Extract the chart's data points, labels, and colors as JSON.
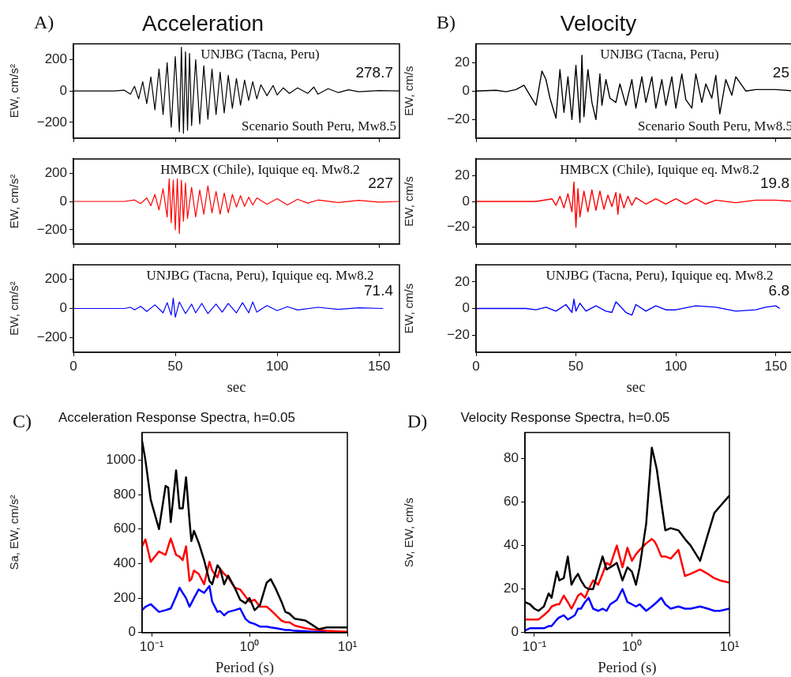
{
  "chart_data": [
    {
      "type": "line",
      "title": "Acceleration",
      "ylabel": "EW, cm/s²",
      "annotations": [
        "A)",
        "UNJBG (Tacna, Peru)",
        "278.7",
        "Scenario South Peru, Mw8.5"
      ],
      "xlim": [
        0,
        160
      ],
      "xticks": [
        0,
        50,
        100,
        150
      ],
      "ylim": [
        -300,
        300
      ],
      "yticks": [
        -200,
        0,
        200
      ],
      "tick_labels": "y",
      "series": [
        {
          "color": "#000000",
          "x": [
            0,
            20,
            25,
            28,
            30,
            32,
            34,
            36,
            38,
            40,
            42,
            44,
            46,
            48,
            50,
            52,
            53,
            54,
            55,
            56,
            57,
            58,
            60,
            62,
            64,
            66,
            68,
            70,
            72,
            74,
            76,
            78,
            80,
            82,
            84,
            86,
            88,
            90,
            92,
            95,
            98,
            100,
            103,
            106,
            110,
            115,
            118,
            120,
            125,
            130,
            135,
            140,
            150,
            160
          ],
          "values": [
            0,
            0,
            5,
            -20,
            30,
            -50,
            60,
            -80,
            90,
            -120,
            140,
            -150,
            180,
            -230,
            220,
            -260,
            279,
            -270,
            250,
            -250,
            240,
            -220,
            200,
            -210,
            160,
            -180,
            140,
            -150,
            120,
            -140,
            100,
            -110,
            80,
            -90,
            70,
            -60,
            60,
            -50,
            40,
            -30,
            35,
            -25,
            20,
            -15,
            20,
            -15,
            25,
            -20,
            15,
            -10,
            8,
            -5,
            3,
            0
          ]
        }
      ]
    },
    {
      "type": "line",
      "ylabel": "EW, cm/s²",
      "annotations": [
        "HMBCX (Chile), Iquique eq. Mw8.2",
        "227"
      ],
      "xlim": [
        0,
        160
      ],
      "xticks": [
        0,
        50,
        100,
        150
      ],
      "ylim": [
        -300,
        300
      ],
      "yticks": [
        -200,
        0,
        200
      ],
      "tick_labels": "y",
      "series": [
        {
          "color": "#ff0000",
          "x": [
            0,
            25,
            30,
            33,
            36,
            38,
            40,
            42,
            44,
            46,
            47,
            48,
            49,
            50,
            51,
            52,
            53,
            54,
            55,
            56,
            58,
            60,
            62,
            64,
            66,
            68,
            70,
            72,
            74,
            76,
            78,
            80,
            82,
            84,
            86,
            88,
            90,
            95,
            100,
            105,
            110,
            115,
            120,
            130,
            140,
            150,
            160
          ],
          "values": [
            0,
            0,
            10,
            -15,
            25,
            -30,
            50,
            -60,
            90,
            -110,
            160,
            -150,
            150,
            -200,
            160,
            -227,
            150,
            -140,
            130,
            -120,
            100,
            -110,
            80,
            -90,
            110,
            -80,
            70,
            -90,
            60,
            -80,
            50,
            -40,
            40,
            -35,
            30,
            -25,
            25,
            -20,
            20,
            -25,
            15,
            -12,
            10,
            -8,
            8,
            -5,
            0
          ]
        }
      ]
    },
    {
      "type": "line",
      "xlabel": "sec",
      "ylabel": "EW, cm/s²",
      "annotations": [
        "UNJBG (Tacna, Peru), Iquique eq. Mw8.2",
        "71.4"
      ],
      "xlim": [
        0,
        160
      ],
      "xticks": [
        0,
        50,
        100,
        150
      ],
      "ylim": [
        -300,
        300
      ],
      "yticks": [
        -200,
        0,
        200
      ],
      "series": [
        {
          "color": "#0000ff",
          "x": [
            0,
            25,
            28,
            30,
            33,
            36,
            40,
            44,
            46,
            48,
            49,
            50,
            52,
            55,
            58,
            60,
            63,
            66,
            70,
            73,
            76,
            80,
            83,
            86,
            88,
            90,
            95,
            100,
            105,
            110,
            120,
            130,
            140,
            152
          ],
          "values": [
            0,
            0,
            8,
            -10,
            15,
            -20,
            25,
            -30,
            40,
            -45,
            71,
            -60,
            45,
            -35,
            30,
            -30,
            35,
            -35,
            30,
            -25,
            35,
            -30,
            40,
            -30,
            45,
            -25,
            20,
            -15,
            12,
            -10,
            8,
            -6,
            5,
            0
          ]
        }
      ]
    },
    {
      "type": "line",
      "title": "Velocity",
      "ylabel": "EW, cm/s",
      "annotations": [
        "B)",
        "UNJBG (Tacna, Peru)",
        "25",
        "Scenario South Peru, Mw8.5"
      ],
      "xlim": [
        0,
        160
      ],
      "xticks": [
        0,
        50,
        100,
        150
      ],
      "ylim": [
        -33,
        33
      ],
      "yticks": [
        -20,
        0,
        20
      ],
      "tick_labels": "y",
      "series": [
        {
          "color": "#000000",
          "x": [
            0,
            10,
            15,
            20,
            24,
            27,
            30,
            33,
            35,
            37,
            40,
            42,
            44,
            46,
            48,
            50,
            52,
            53,
            54,
            56,
            58,
            60,
            62,
            63,
            65,
            67,
            70,
            72,
            75,
            78,
            80,
            83,
            85,
            88,
            90,
            93,
            95,
            98,
            100,
            103,
            105,
            108,
            110,
            113,
            115,
            118,
            120,
            122,
            125,
            128,
            130,
            135,
            140,
            150,
            160
          ],
          "values": [
            0,
            0.5,
            -0.5,
            1,
            4,
            -3,
            -10,
            14,
            8,
            -5,
            -19,
            15,
            -15,
            10,
            -20,
            18,
            -22,
            25,
            -18,
            15,
            -8,
            -20,
            12,
            -10,
            8,
            -5,
            -8,
            5,
            -10,
            8,
            -12,
            10,
            -8,
            10,
            -12,
            8,
            -10,
            10,
            -12,
            12,
            -6,
            -12,
            12,
            -8,
            5,
            -5,
            11,
            -16,
            8,
            -3,
            10,
            0,
            1,
            1,
            0
          ]
        }
      ]
    },
    {
      "type": "line",
      "ylabel": "EW, cm/s",
      "annotations": [
        "HMBCX (Chile), Iquique eq. Mw8.2",
        "19.8"
      ],
      "xlim": [
        0,
        160
      ],
      "xticks": [
        0,
        50,
        100,
        150
      ],
      "ylim": [
        -33,
        33
      ],
      "yticks": [
        -20,
        0,
        20
      ],
      "tick_labels": "y",
      "series": [
        {
          "color": "#ff0000",
          "x": [
            0,
            30,
            38,
            40,
            42,
            44,
            46,
            48,
            49,
            50,
            51,
            52,
            54,
            56,
            58,
            60,
            62,
            64,
            66,
            68,
            70,
            71,
            72,
            74,
            76,
            78,
            80,
            85,
            90,
            95,
            100,
            105,
            110,
            115,
            120,
            130,
            140,
            150,
            160
          ],
          "values": [
            0,
            0,
            2,
            -3,
            4,
            -5,
            6,
            -8,
            15,
            -20,
            10,
            -12,
            8,
            -8,
            9,
            -7,
            8,
            -6,
            5,
            -4,
            7,
            -10,
            6,
            -5,
            4,
            -3,
            3,
            -2,
            2,
            -2,
            2,
            -2,
            2,
            -2,
            1,
            -1,
            1,
            1,
            0
          ]
        }
      ]
    },
    {
      "type": "line",
      "xlabel": "sec",
      "ylabel": "EW, cm/s",
      "annotations": [
        "UNJBG (Tacna, Peru), Iquique eq. Mw8.2",
        "6.8"
      ],
      "xlim": [
        0,
        160
      ],
      "xticks": [
        0,
        50,
        100,
        150
      ],
      "ylim": [
        -33,
        33
      ],
      "yticks": [
        -20,
        0,
        20
      ],
      "series": [
        {
          "color": "#0000ff",
          "x": [
            0,
            25,
            30,
            35,
            40,
            45,
            48,
            49,
            50,
            52,
            55,
            60,
            65,
            68,
            70,
            72,
            75,
            78,
            80,
            85,
            90,
            95,
            100,
            110,
            120,
            130,
            140,
            145,
            150,
            152
          ],
          "values": [
            0,
            0,
            -1,
            1,
            -2,
            3,
            -3,
            7,
            -2,
            4,
            -2,
            2,
            -2,
            -3,
            5,
            2,
            -3,
            -5,
            3,
            -2,
            2,
            -1,
            -1,
            2,
            1,
            -2,
            -1,
            1,
            2,
            0
          ]
        }
      ]
    },
    {
      "type": "line",
      "title": "Acceleration Response Spectra, h=0.05",
      "xlabel": "Period (s)",
      "ylabel": "Sa, EW, cm/s²",
      "annotations": [
        "C)"
      ],
      "log": "x",
      "xlim": [
        0.08,
        10
      ],
      "xticks": [
        {
          "value": 0.1,
          "label": "10⁻¹"
        },
        {
          "value": 1,
          "label": "10⁰"
        },
        {
          "value": 10,
          "label": "10¹"
        }
      ],
      "ylim": [
        0,
        1160
      ],
      "yticks": [
        0,
        200,
        400,
        600,
        800,
        1000
      ],
      "x": [
        0.08,
        0.0865,
        0.098,
        0.119,
        0.139,
        0.148,
        0.157,
        0.178,
        0.193,
        0.208,
        0.225,
        0.244,
        0.255,
        0.271,
        0.303,
        0.344,
        0.39,
        0.416,
        0.471,
        0.501,
        0.551,
        0.605,
        0.708,
        0.803,
        0.91,
        1.0,
        1.13,
        1.28,
        1.5,
        1.65,
        1.87,
        2.12,
        2.33,
        2.56,
        2.91,
        3.73,
        4.23,
        5.11,
        6.16,
        10
      ],
      "series": [
        {
          "color": "#000000",
          "values": [
            1110,
            1000,
            770,
            600,
            850,
            840,
            640,
            940,
            720,
            720,
            900,
            650,
            530,
            590,
            520,
            420,
            300,
            280,
            390,
            370,
            280,
            330,
            260,
            190,
            170,
            200,
            130,
            160,
            290,
            310,
            250,
            180,
            120,
            110,
            80,
            70,
            50,
            20,
            30,
            30
          ]
        },
        {
          "color": "#ff0000",
          "values": [
            500,
            540,
            410,
            470,
            450,
            500,
            545,
            450,
            440,
            420,
            500,
            300,
            310,
            360,
            340,
            280,
            410,
            360,
            320,
            370,
            340,
            320,
            260,
            250,
            210,
            180,
            190,
            150,
            150,
            130,
            100,
            70,
            60,
            60,
            40,
            25,
            20,
            15,
            10,
            5
          ]
        },
        {
          "color": "#0000ff",
          "values": [
            130,
            150,
            165,
            120,
            130,
            135,
            140,
            210,
            260,
            230,
            200,
            150,
            170,
            200,
            250,
            230,
            270,
            180,
            120,
            125,
            100,
            120,
            130,
            140,
            80,
            60,
            50,
            35,
            35,
            30,
            25,
            20,
            15,
            15,
            10,
            8,
            5,
            5,
            3,
            null
          ]
        }
      ]
    },
    {
      "type": "line",
      "title": "Velocity Response Spectra, h=0.05",
      "xlabel": "Period (s)",
      "ylabel": "Sv, EW, cm/s",
      "annotations": [
        "D)"
      ],
      "log": "x",
      "xlim": [
        0.08,
        10
      ],
      "xticks": [
        {
          "value": 0.1,
          "label": "10⁻¹"
        },
        {
          "value": 1,
          "label": "10⁰"
        },
        {
          "value": 10,
          "label": "10¹"
        }
      ],
      "ylim": [
        0,
        92
      ],
      "yticks": [
        0,
        20,
        40,
        60,
        80
      ],
      "x": [
        0.08,
        0.09,
        0.1,
        0.11,
        0.125,
        0.14,
        0.15,
        0.17,
        0.18,
        0.2,
        0.22,
        0.24,
        0.26,
        0.28,
        0.3,
        0.33,
        0.36,
        0.4,
        0.45,
        0.5,
        0.55,
        0.6,
        0.7,
        0.8,
        0.9,
        1.0,
        1.1,
        1.2,
        1.4,
        1.6,
        1.7,
        1.8,
        2.0,
        2.2,
        2.5,
        3.0,
        3.5,
        4.0,
        5.0,
        6.0,
        7.0,
        8.0,
        10
      ],
      "series": [
        {
          "color": "#000000",
          "values": [
            14,
            13,
            11,
            10,
            12,
            18,
            16,
            28,
            24,
            25,
            35,
            22,
            25,
            27,
            24,
            21,
            20,
            20,
            28,
            35,
            29,
            30,
            32,
            24,
            30,
            28,
            22,
            30,
            50,
            85,
            80,
            75,
            60,
            47,
            48,
            47,
            43,
            40,
            33,
            45,
            55,
            58,
            63
          ]
        },
        {
          "color": "#ff0000",
          "values": [
            6,
            6,
            6,
            6,
            8,
            10,
            12,
            13,
            13,
            17,
            14,
            11,
            14,
            17,
            18,
            16,
            20,
            24,
            22,
            27,
            32,
            31,
            40,
            30,
            39,
            33,
            36,
            38,
            41,
            43,
            42,
            40,
            35,
            35,
            34,
            38,
            26,
            27,
            29,
            27,
            25,
            24,
            23
          ]
        },
        {
          "color": "#0000ff",
          "values": [
            1,
            2,
            2,
            2,
            2,
            3,
            3,
            6,
            7,
            8,
            6,
            7,
            8,
            11,
            11,
            14,
            16,
            11,
            10,
            11,
            10,
            13,
            15,
            20,
            14,
            13,
            12,
            13,
            10,
            12,
            13,
            14,
            16,
            13,
            11,
            12,
            11,
            11,
            12,
            11,
            10,
            10,
            11
          ]
        }
      ]
    }
  ]
}
